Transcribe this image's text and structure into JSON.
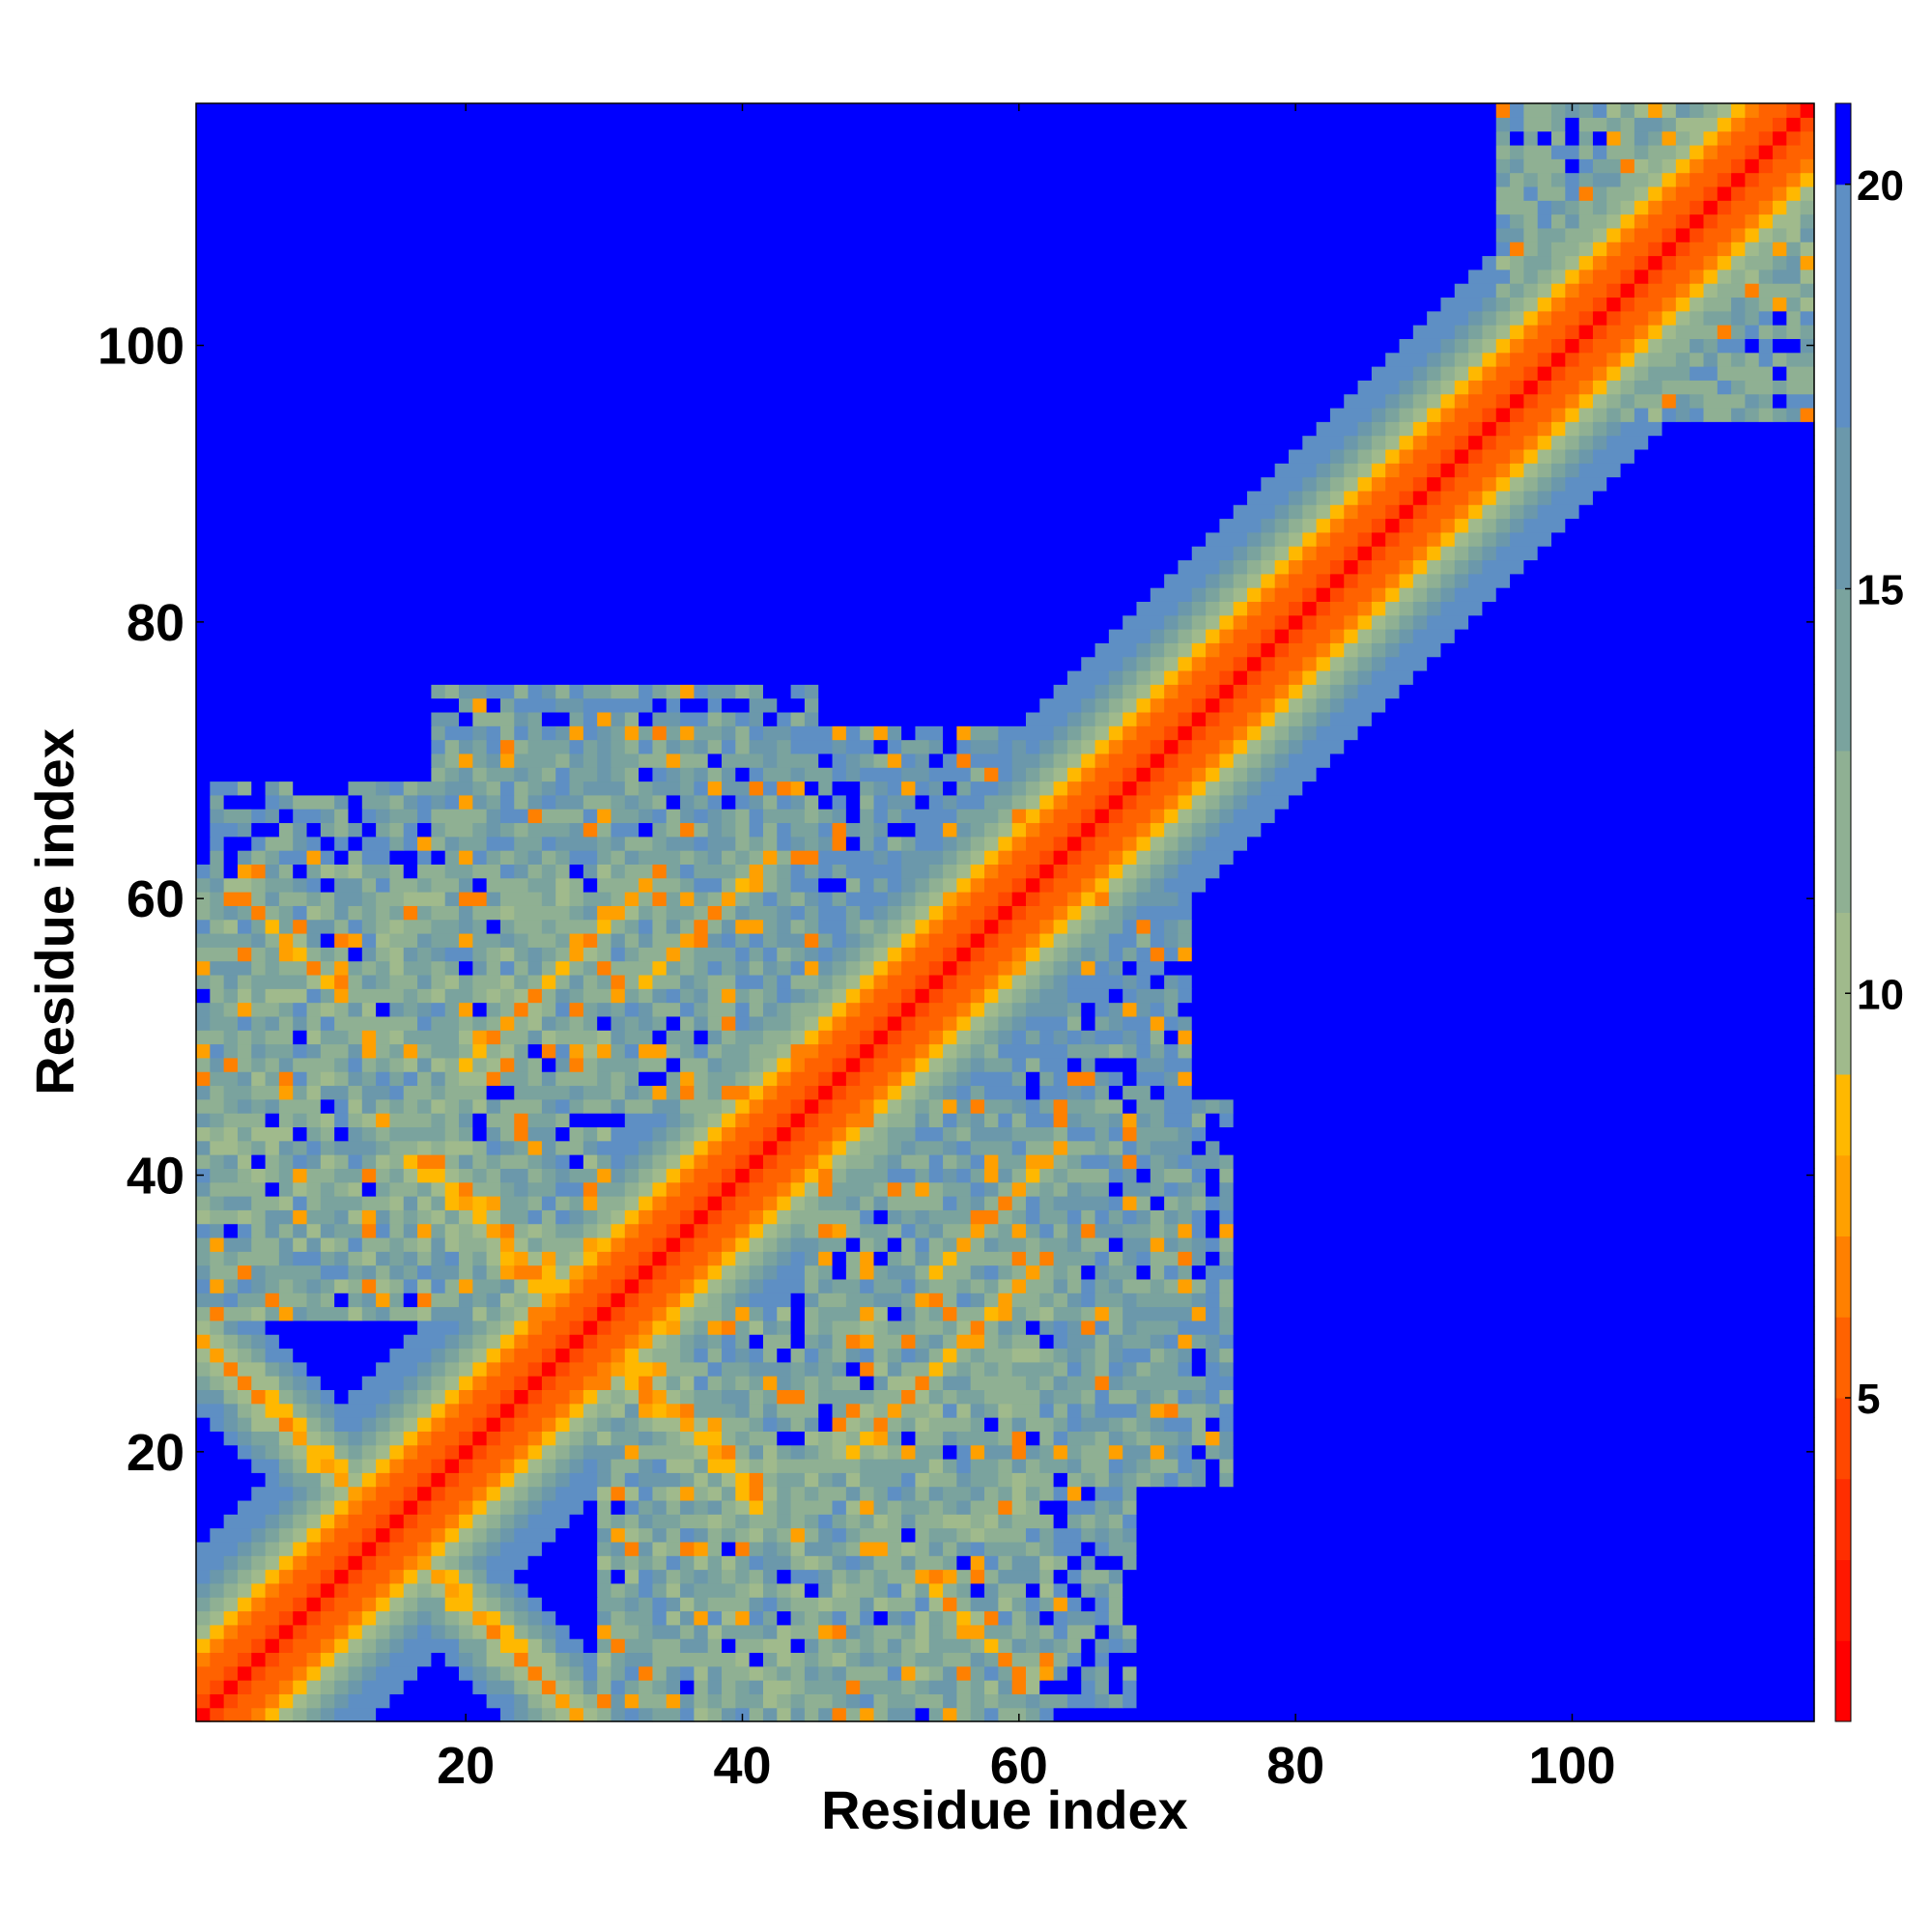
{
  "chart_data": {
    "type": "heatmap",
    "title": "",
    "xlabel": "Residue index",
    "ylabel": "Residue index",
    "n_residues": 117,
    "xlim": [
      0.5,
      117.5
    ],
    "ylim": [
      0.5,
      117.5
    ],
    "x_ticks": [
      20,
      40,
      60,
      80,
      100
    ],
    "y_ticks": [
      20,
      40,
      60,
      80,
      100
    ],
    "x_tick_labels": [
      "20",
      "40",
      "60",
      "80",
      "100"
    ],
    "y_tick_labels": [
      "20",
      "40",
      "60",
      "80",
      "100"
    ],
    "colorbar": {
      "ticks": [
        5,
        10,
        15,
        20
      ],
      "tick_labels": [
        "5",
        "10",
        "15",
        "20"
      ],
      "range": [
        1,
        21
      ],
      "levels": [
        {
          "max": 2.0,
          "color": "#ff0000"
        },
        {
          "max": 3.0,
          "color": "#ff1800"
        },
        {
          "max": 4.0,
          "color": "#ff2e00"
        },
        {
          "max": 5.0,
          "color": "#ff4800"
        },
        {
          "max": 6.0,
          "color": "#ff6200"
        },
        {
          "max": 7.0,
          "color": "#ff8000"
        },
        {
          "max": 8.0,
          "color": "#ffa000"
        },
        {
          "max": 9.0,
          "color": "#ffb800"
        },
        {
          "max": 11.0,
          "color": "#a0ba8c"
        },
        {
          "max": 13.0,
          "color": "#8fb093"
        },
        {
          "max": 15.0,
          "color": "#7aa39e"
        },
        {
          "max": 17.0,
          "color": "#6b98ab"
        },
        {
          "max": 20.0,
          "color": "#5e8fc4"
        },
        {
          "max": 999,
          "color": "#0000ff"
        }
      ]
    },
    "description_values": {
      "diagonal_band_width_residues": 12,
      "background_value": 21
    },
    "contact_features": [
      {
        "kind": "antiparallel",
        "i_start": 1,
        "j_start": 28,
        "length": 14,
        "strength": 1
      },
      {
        "kind": "antiparallel",
        "i_start": 17,
        "j_start": 41,
        "length": 12,
        "strength": 1
      },
      {
        "kind": "antiparallel",
        "i_start": 23,
        "j_start": 34,
        "length": 4,
        "strength": 0.7
      },
      {
        "kind": "antiparallel",
        "i_start": 4,
        "j_start": 60,
        "length": 8,
        "strength": 0.45
      },
      {
        "kind": "parallel",
        "i_start": 20,
        "j_start": 48,
        "length": 14,
        "strength": 0.55
      },
      {
        "kind": "parallel",
        "i_start": 33,
        "j_start": 54,
        "length": 10,
        "strength": 0.5
      },
      {
        "kind": "block",
        "i_range": [
          1,
          26
        ],
        "j_range": [
          30,
          62
        ],
        "level": 13
      },
      {
        "kind": "block",
        "i_range": [
          18,
          45
        ],
        "j_range": [
          45,
          75
        ],
        "level": 14
      },
      {
        "kind": "block",
        "i_range": [
          30,
          62
        ],
        "j_range": [
          2,
          30
        ],
        "level": 13
      },
      {
        "kind": "block",
        "i_range": [
          45,
          68
        ],
        "j_range": [
          2,
          42
        ],
        "level": 14
      },
      {
        "kind": "block",
        "i_range": [
          55,
          72
        ],
        "j_range": [
          18,
          60
        ],
        "level": 15
      },
      {
        "kind": "block",
        "i_range": [
          103,
          117
        ],
        "j_range": [
          95,
          117
        ],
        "level": 13
      }
    ]
  }
}
